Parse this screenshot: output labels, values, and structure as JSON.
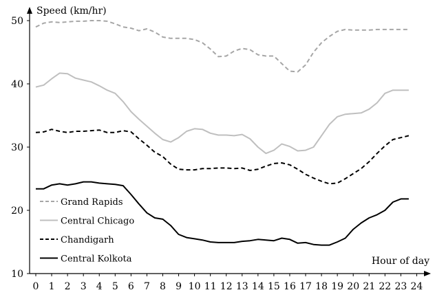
{
  "chart_data": {
    "type": "line",
    "ylabel": "Speed (km/hr)",
    "xlabel": "Hour of day",
    "xlim": [
      0,
      24
    ],
    "ylim": [
      10,
      50
    ],
    "xticks": [
      0,
      1,
      2,
      3,
      4,
      5,
      6,
      7,
      8,
      9,
      10,
      11,
      12,
      13,
      14,
      15,
      16,
      17,
      18,
      19,
      20,
      21,
      22,
      23,
      24
    ],
    "yticks": [
      10,
      20,
      30,
      40,
      50
    ],
    "grid": false,
    "legend_position": "bottom-left",
    "series": [
      {
        "name": "Grand Rapids",
        "color": "#a6a6a6",
        "dash": "dashed",
        "x": [
          0,
          0.5,
          1,
          1.5,
          2,
          2.5,
          3,
          3.5,
          4,
          4.5,
          5,
          5.5,
          6,
          6.5,
          7,
          7.5,
          8,
          8.5,
          9,
          9.5,
          10,
          10.5,
          11,
          11.5,
          12,
          12.5,
          13,
          13.5,
          14,
          14.5,
          15,
          15.5,
          16,
          16.5,
          17,
          17.5,
          18,
          18.5,
          19,
          19.5,
          20,
          20.5,
          21,
          21.5,
          22,
          22.5,
          23,
          23.5
        ],
        "values": [
          49.0,
          49.6,
          49.8,
          49.7,
          49.8,
          49.9,
          49.9,
          50.0,
          50.0,
          49.9,
          49.5,
          49.0,
          48.8,
          48.4,
          48.7,
          48.2,
          47.4,
          47.2,
          47.2,
          47.2,
          47.0,
          46.5,
          45.5,
          44.3,
          44.4,
          45.2,
          45.6,
          45.4,
          44.6,
          44.4,
          44.4,
          43.2,
          42.0,
          41.9,
          43.0,
          45.0,
          46.5,
          47.5,
          48.3,
          48.6,
          48.5,
          48.5,
          48.5,
          48.6,
          48.6,
          48.6,
          48.6,
          48.6
        ]
      },
      {
        "name": "Central Chicago",
        "color": "#bfbfbf",
        "dash": "solid",
        "x": [
          0,
          0.5,
          1,
          1.5,
          2,
          2.5,
          3,
          3.5,
          4,
          4.5,
          5,
          5.5,
          6,
          6.5,
          7,
          7.5,
          8,
          8.5,
          9,
          9.5,
          10,
          10.5,
          11,
          11.5,
          12,
          12.5,
          13,
          13.5,
          14,
          14.5,
          15,
          15.5,
          16,
          16.5,
          17,
          17.5,
          18,
          18.5,
          19,
          19.5,
          20,
          20.5,
          21,
          21.5,
          22,
          22.5,
          23,
          23.5
        ],
        "values": [
          39.5,
          39.8,
          40.8,
          41.7,
          41.6,
          40.9,
          40.6,
          40.3,
          39.7,
          39.0,
          38.5,
          37.2,
          35.6,
          34.4,
          33.3,
          32.2,
          31.2,
          30.8,
          31.5,
          32.5,
          32.9,
          32.8,
          32.2,
          31.9,
          31.9,
          31.8,
          32.0,
          31.3,
          30.0,
          29.0,
          29.5,
          30.5,
          30.1,
          29.4,
          29.5,
          30.0,
          31.8,
          33.6,
          34.8,
          35.2,
          35.3,
          35.4,
          36.0,
          37.0,
          38.5,
          39.0,
          39.0,
          39.0
        ]
      },
      {
        "name": "Chandigarh",
        "color": "#000000",
        "dash": "dashed",
        "x": [
          0,
          0.5,
          1,
          1.5,
          2,
          2.5,
          3,
          3.5,
          4,
          4.5,
          5,
          5.5,
          6,
          6.5,
          7,
          7.5,
          8,
          8.5,
          9,
          9.5,
          10,
          10.5,
          11,
          11.5,
          12,
          12.5,
          13,
          13.5,
          14,
          14.5,
          15,
          15.5,
          16,
          16.5,
          17,
          17.5,
          18,
          18.5,
          19,
          19.5,
          20,
          20.5,
          21,
          21.5,
          22,
          22.5,
          23,
          23.5
        ],
        "values": [
          32.3,
          32.4,
          32.8,
          32.5,
          32.3,
          32.5,
          32.5,
          32.6,
          32.7,
          32.3,
          32.3,
          32.6,
          32.4,
          31.3,
          30.3,
          29.2,
          28.5,
          27.3,
          26.5,
          26.4,
          26.4,
          26.6,
          26.6,
          26.7,
          26.7,
          26.6,
          26.7,
          26.3,
          26.5,
          27.0,
          27.4,
          27.5,
          27.2,
          26.5,
          25.7,
          25.1,
          24.6,
          24.2,
          24.3,
          25.0,
          25.8,
          26.6,
          27.7,
          29.0,
          30.2,
          31.2,
          31.5,
          31.8
        ]
      },
      {
        "name": "Central Kolkota",
        "color": "#000000",
        "dash": "solid",
        "x": [
          0,
          0.5,
          1,
          1.5,
          2,
          2.5,
          3,
          3.5,
          4,
          4.5,
          5,
          5.5,
          6,
          6.5,
          7,
          7.5,
          8,
          8.5,
          9,
          9.5,
          10,
          10.5,
          11,
          11.5,
          12,
          12.5,
          13,
          13.5,
          14,
          14.5,
          15,
          15.5,
          16,
          16.5,
          17,
          17.5,
          18,
          18.5,
          19,
          19.5,
          20,
          20.5,
          21,
          21.5,
          22,
          22.5,
          23,
          23.5
        ],
        "values": [
          23.4,
          23.4,
          24.0,
          24.2,
          24.0,
          24.2,
          24.5,
          24.5,
          24.3,
          24.2,
          24.1,
          23.9,
          22.5,
          21.0,
          19.6,
          18.8,
          18.6,
          17.6,
          16.2,
          15.7,
          15.5,
          15.3,
          15.0,
          14.9,
          14.9,
          14.9,
          15.1,
          15.2,
          15.4,
          15.3,
          15.2,
          15.6,
          15.4,
          14.8,
          14.9,
          14.6,
          14.5,
          14.5,
          15.0,
          15.6,
          17.0,
          18.0,
          18.8,
          19.3,
          20.0,
          21.3,
          21.8,
          21.8
        ]
      }
    ]
  }
}
